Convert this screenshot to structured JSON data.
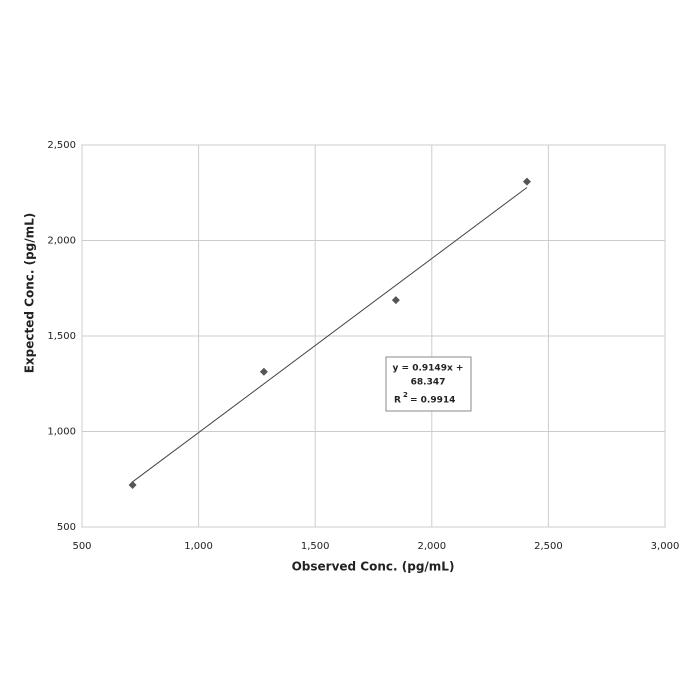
{
  "chart_data": {
    "type": "scatter",
    "xlabel": "Observed Conc. (pg/mL)",
    "ylabel": "Expected Conc. (pg/mL)",
    "x": [
      717,
      1280,
      1846,
      2408
    ],
    "values": [
      720,
      1313,
      1688,
      2308
    ],
    "color": "#555555",
    "trendline": true,
    "annotation": [
      "y = 0.9149x +",
      "68.347"
    ],
    "r2_annotation": {
      "base": "R",
      "sup": "2",
      "rest": "= 0.9914"
    },
    "xlim": [
      500,
      3000
    ],
    "xticks": [
      500,
      {
        "value": 1000,
        "label": "1,000"
      },
      {
        "value": 1500,
        "label": "1,500"
      },
      {
        "value": 2000,
        "label": "2,000"
      },
      {
        "value": 2500,
        "label": "2,500"
      },
      {
        "value": 3000,
        "label": "3,000"
      }
    ],
    "ylim": [
      500,
      2500
    ],
    "yticks": [
      500,
      {
        "value": 1000,
        "label": "1,000"
      },
      {
        "value": 1500,
        "label": "1,500"
      },
      {
        "value": 2000,
        "label": "2,000"
      },
      {
        "value": 2500,
        "label": "2,500"
      }
    ],
    "grid": true
  }
}
